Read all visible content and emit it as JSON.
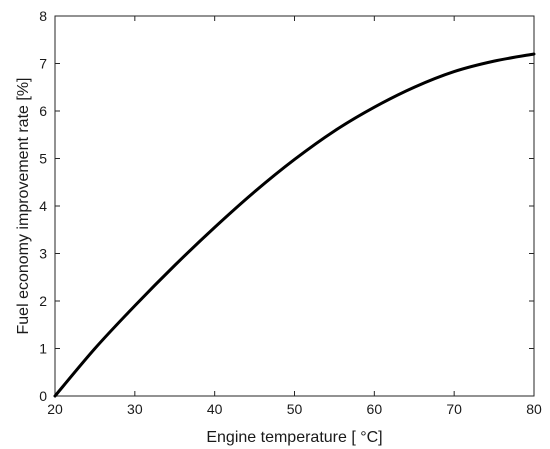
{
  "chart_data": {
    "type": "line",
    "title": "",
    "xlabel": "Engine temperature [ °C]",
    "ylabel": "Fuel economy improvement rate [%]",
    "xlim": [
      20,
      80
    ],
    "ylim": [
      0,
      8
    ],
    "xticks": [
      20,
      30,
      40,
      50,
      60,
      70,
      80
    ],
    "yticks": [
      0,
      1,
      2,
      3,
      4,
      5,
      6,
      7,
      8
    ],
    "grid": false,
    "series": [
      {
        "x": [
          20,
          25,
          30,
          35,
          40,
          45,
          50,
          55,
          60,
          65,
          70,
          75,
          80
        ],
        "y": [
          0,
          1.0,
          1.9,
          2.75,
          3.55,
          4.3,
          4.98,
          5.58,
          6.08,
          6.5,
          6.83,
          7.05,
          7.2
        ],
        "color": "#000000"
      }
    ]
  }
}
